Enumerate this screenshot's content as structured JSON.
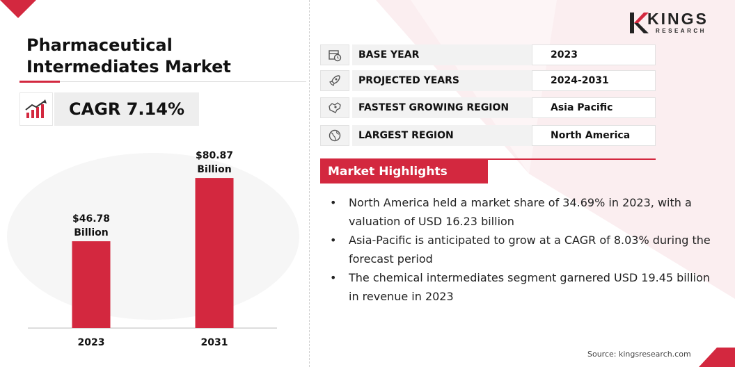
{
  "title": "Pharmaceutical Intermediates Market",
  "cagr": {
    "label": "CAGR 7.14%",
    "icon": "rising-chart-icon"
  },
  "brand": {
    "name": "KINGS",
    "sub": "RESEARCH",
    "logo_icon": "kings-research-logo",
    "accent_color": "#d3283f"
  },
  "info_rows": [
    {
      "icon": "calendar-clock-icon",
      "label": "BASE YEAR",
      "value": "2023"
    },
    {
      "icon": "rocket-icon",
      "label": "PROJECTED YEARS",
      "value": "2024-2031"
    },
    {
      "icon": "map-region-icon",
      "label": "FASTEST GROWING REGION",
      "value": "Asia Pacific"
    },
    {
      "icon": "globe-icon",
      "label": "LARGEST REGION",
      "value": "North America"
    }
  ],
  "highlights": {
    "heading": "Market Highlights",
    "items": [
      "North America held a market share of 34.69% in 2023, with a valuation of USD 16.23 billion",
      "Asia-Pacific is anticipated to grow at a CAGR of 8.03% during the forecast period",
      "The chemical intermediates segment garnered USD 19.45 billion in revenue in 2023"
    ]
  },
  "source": "Source: kingsresearch.com",
  "chart_data": {
    "type": "bar",
    "categories": [
      "2023",
      "2031"
    ],
    "values": [
      46.78,
      80.87
    ],
    "data_labels": [
      [
        "$46.78",
        "Billion"
      ],
      [
        "$80.87",
        "Billion"
      ]
    ],
    "ylim": [
      0,
      100
    ],
    "bar_color": "#d3283f",
    "grid": false
  }
}
